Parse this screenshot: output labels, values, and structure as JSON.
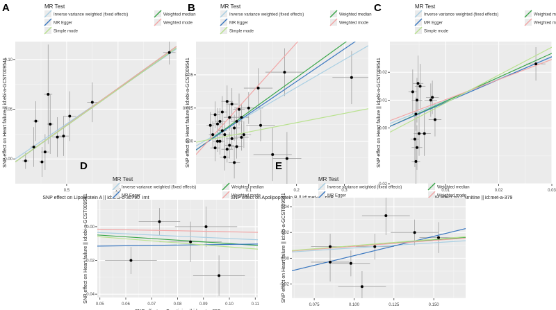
{
  "legend_title": "MR Test",
  "methods": [
    {
      "key": "ivw",
      "label": "Inverse variance weighted (fixed effects)",
      "color": "#a9cfe3"
    },
    {
      "key": "egger",
      "label": "MR Egger",
      "color": "#3b78c0"
    },
    {
      "key": "median",
      "label": "Weighted median",
      "color": "#3aa64a"
    },
    {
      "key": "mode",
      "label": "Weighted mode",
      "color": "#f2a5a5"
    },
    {
      "key": "simple",
      "label": "Simple mode",
      "color": "#b9e28f"
    }
  ],
  "chart_data": [
    {
      "type": "scatter",
      "panel": "A",
      "xlabel": "SNP effect on Lipoprotein A || id:ukb-d-30790_irnt",
      "ylabel": "SNP effect on Heart failure || id:ebi-a-GCST009541",
      "xlim": [
        0.0,
        1.57
      ],
      "ylim": [
        -0.025,
        0.118
      ],
      "xticks": [
        {
          "v": 0.5,
          "l": "0.5"
        },
        {
          "v": 1.0,
          "l": "1.0"
        }
      ],
      "yticks": [
        {
          "v": 0.0,
          "l": "0.00"
        },
        {
          "v": 0.05,
          "l": "0.05"
        },
        {
          "v": 0.1,
          "l": "0.10"
        }
      ],
      "points": [
        {
          "x": 0.1,
          "y": -0.002,
          "xe": 0.03,
          "ye": 0.008
        },
        {
          "x": 0.18,
          "y": 0.012,
          "xe": 0.03,
          "ye": 0.02
        },
        {
          "x": 0.2,
          "y": 0.038,
          "xe": 0.03,
          "ye": 0.02
        },
        {
          "x": 0.26,
          "y": -0.003,
          "xe": 0.03,
          "ye": 0.015
        },
        {
          "x": 0.29,
          "y": 0.007,
          "xe": 0.04,
          "ye": 0.018
        },
        {
          "x": 0.32,
          "y": 0.065,
          "xe": 0.04,
          "ye": 0.05
        },
        {
          "x": 0.34,
          "y": 0.035,
          "xe": 0.03,
          "ye": 0.03
        },
        {
          "x": 0.41,
          "y": 0.022,
          "xe": 0.05,
          "ye": 0.02
        },
        {
          "x": 0.47,
          "y": 0.023,
          "xe": 0.05,
          "ye": 0.02
        },
        {
          "x": 0.53,
          "y": 0.043,
          "xe": 0.06,
          "ye": 0.025
        },
        {
          "x": 0.75,
          "y": 0.057,
          "xe": 0.05,
          "ye": 0.02
        },
        {
          "x": 1.5,
          "y": 0.107,
          "xe": 0.06,
          "ye": 0.012
        }
      ],
      "lines": {
        "ivw": {
          "slope": 0.0705,
          "intercept": 0.0
        },
        "egger": {
          "slope": 0.073,
          "intercept": -0.003
        },
        "median": {
          "slope": 0.074,
          "intercept": -0.003
        },
        "mode": {
          "slope": 0.074,
          "intercept": -0.003
        },
        "simple": {
          "slope": 0.073,
          "intercept": -0.003
        }
      }
    },
    {
      "type": "scatter",
      "panel": "B",
      "xlabel": "SNP effect on Apolipoprotein B || id:met-d-ApoB",
      "ylabel": "SNP effect on Heart failure || id:ebi-a-GCST009541",
      "xlim": [
        -0.01,
        0.35
      ],
      "ylim": [
        -0.032,
        0.075
      ],
      "xticks": [
        {
          "v": 0.1,
          "l": "0.1"
        },
        {
          "v": 0.2,
          "l": "0.2"
        },
        {
          "v": 0.3,
          "l": "0.3"
        }
      ],
      "yticks": [
        {
          "v": 0.0,
          "l": "0.00"
        },
        {
          "v": 0.025,
          "l": "0.025"
        },
        {
          "v": 0.05,
          "l": "0.05"
        }
      ],
      "points": [
        {
          "x": 0.02,
          "y": 0.012,
          "xe": 0.008,
          "ye": 0.01
        },
        {
          "x": 0.025,
          "y": 0.005,
          "xe": 0.008,
          "ye": 0.01
        },
        {
          "x": 0.03,
          "y": -0.005,
          "xe": 0.01,
          "ye": 0.01
        },
        {
          "x": 0.03,
          "y": 0.02,
          "xe": 0.01,
          "ye": 0.01
        },
        {
          "x": 0.035,
          "y": 0.013,
          "xe": 0.01,
          "ye": 0.012
        },
        {
          "x": 0.04,
          "y": 0.0,
          "xe": 0.01,
          "ye": 0.01
        },
        {
          "x": 0.04,
          "y": 0.015,
          "xe": 0.01,
          "ye": 0.01
        },
        {
          "x": 0.045,
          "y": 0.022,
          "xe": 0.01,
          "ye": 0.012
        },
        {
          "x": 0.05,
          "y": 0.005,
          "xe": 0.012,
          "ye": 0.01
        },
        {
          "x": 0.05,
          "y": -0.012,
          "xe": 0.01,
          "ye": 0.01
        },
        {
          "x": 0.055,
          "y": 0.03,
          "xe": 0.012,
          "ye": 0.012
        },
        {
          "x": 0.06,
          "y": 0.018,
          "xe": 0.012,
          "ye": 0.01
        },
        {
          "x": 0.06,
          "y": -0.003,
          "xe": 0.01,
          "ye": 0.01
        },
        {
          "x": 0.065,
          "y": 0.028,
          "xe": 0.012,
          "ye": 0.012
        },
        {
          "x": 0.07,
          "y": 0.01,
          "xe": 0.012,
          "ye": 0.01
        },
        {
          "x": 0.07,
          "y": -0.016,
          "xe": 0.012,
          "ye": 0.012
        },
        {
          "x": 0.075,
          "y": 0.015,
          "xe": 0.012,
          "ye": 0.01
        },
        {
          "x": 0.08,
          "y": 0.024,
          "xe": 0.012,
          "ye": 0.012
        },
        {
          "x": 0.085,
          "y": 0.018,
          "xe": 0.015,
          "ye": 0.01
        },
        {
          "x": 0.035,
          "y": 0.0,
          "xe": 0.01,
          "ye": 0.008
        },
        {
          "x": 0.045,
          "y": 0.008,
          "xe": 0.01,
          "ye": 0.009
        },
        {
          "x": 0.055,
          "y": -0.006,
          "xe": 0.012,
          "ye": 0.01
        },
        {
          "x": 0.065,
          "y": 0.002,
          "xe": 0.012,
          "ye": 0.008
        },
        {
          "x": 0.075,
          "y": -0.004,
          "xe": 0.012,
          "ye": 0.009
        },
        {
          "x": 0.085,
          "y": 0.003,
          "xe": 0.015,
          "ye": 0.01
        },
        {
          "x": 0.09,
          "y": 0.005,
          "xe": 0.015,
          "ye": 0.01
        },
        {
          "x": 0.1,
          "y": 0.025,
          "xe": 0.03,
          "ye": 0.012
        },
        {
          "x": 0.12,
          "y": 0.04,
          "xe": 0.03,
          "ye": 0.015
        },
        {
          "x": 0.125,
          "y": 0.012,
          "xe": 0.03,
          "ye": 0.012
        },
        {
          "x": 0.15,
          "y": -0.01,
          "xe": 0.04,
          "ye": 0.02
        },
        {
          "x": 0.175,
          "y": 0.052,
          "xe": 0.04,
          "ye": 0.018
        },
        {
          "x": 0.18,
          "y": -0.013,
          "xe": 0.03,
          "ye": 0.02
        },
        {
          "x": 0.315,
          "y": 0.048,
          "xe": 0.04,
          "ye": 0.02
        }
      ],
      "lines": {
        "ivw": {
          "slope": 0.21,
          "intercept": -0.0015
        },
        "egger": {
          "slope": 0.245,
          "intercept": -0.004
        },
        "median": {
          "slope": 0.26,
          "intercept": -0.004
        },
        "mode": {
          "slope": 0.4,
          "intercept": -0.006
        },
        "simple": {
          "slope": 0.07,
          "intercept": 0.0
        }
      }
    },
    {
      "type": "scatter",
      "panel": "C",
      "xlabel": "SNP effect on Carnitine || id:met-a-379",
      "ylabel": "SNP effect on Heart failure || id:ebi-a-GCST009541",
      "xlim": [
        -0.0005,
        0.03
      ],
      "ylim": [
        -0.02,
        0.031
      ],
      "xticks": [
        {
          "v": 0.01,
          "l": "0.01"
        },
        {
          "v": 0.02,
          "l": "0.02"
        },
        {
          "v": 0.03,
          "l": "0.03"
        }
      ],
      "yticks": [
        {
          "v": -0.02,
          "l": "-0.02"
        },
        {
          "v": 0.0,
          "l": "0.00"
        },
        {
          "v": 0.01,
          "l": "0.01"
        },
        {
          "v": 0.02,
          "l": "0.02"
        }
      ],
      "points": [
        {
          "x": 0.0038,
          "y": 0.013,
          "xe": 0.0008,
          "ye": 0.008
        },
        {
          "x": 0.0042,
          "y": -0.004,
          "xe": 0.0008,
          "ye": 0.01
        },
        {
          "x": 0.0044,
          "y": 0.005,
          "xe": 0.0008,
          "ye": 0.006
        },
        {
          "x": 0.0044,
          "y": -0.012,
          "xe": 0.0008,
          "ye": 0.008
        },
        {
          "x": 0.0046,
          "y": -0.007,
          "xe": 0.001,
          "ye": 0.008
        },
        {
          "x": 0.0046,
          "y": 0.01,
          "xe": 0.001,
          "ye": 0.008
        },
        {
          "x": 0.0048,
          "y": 0.016,
          "xe": 0.001,
          "ye": 0.01
        },
        {
          "x": 0.005,
          "y": -0.002,
          "xe": 0.001,
          "ye": 0.008
        },
        {
          "x": 0.0052,
          "y": 0.015,
          "xe": 0.001,
          "ye": 0.008
        },
        {
          "x": 0.006,
          "y": -0.002,
          "xe": 0.0012,
          "ye": 0.008
        },
        {
          "x": 0.0072,
          "y": 0.01,
          "xe": 0.0012,
          "ye": 0.006
        },
        {
          "x": 0.0075,
          "y": 0.011,
          "xe": 0.0012,
          "ye": 0.006
        },
        {
          "x": 0.008,
          "y": 0.003,
          "xe": 0.0012,
          "ye": 0.006
        },
        {
          "x": 0.027,
          "y": 0.023,
          "xe": 0.0018,
          "ye": 0.006
        }
      ],
      "lines": {
        "ivw": {
          "slope": 0.78,
          "intercept": 0.002
        },
        "egger": {
          "slope": 0.82,
          "intercept": 0.001
        },
        "median": {
          "slope": 0.86,
          "intercept": 0.001
        },
        "mode": {
          "slope": 0.72,
          "intercept": 0.003
        },
        "simple": {
          "slope": 1.0,
          "intercept": -0.001
        }
      }
    },
    {
      "type": "scatter",
      "panel": "D",
      "xlabel": "SNP effect on Creatinine || id:met-c-850",
      "ylabel": "SNP effect on Heart failure || id:ebi-a-GCST009541",
      "xlim": [
        0.049,
        0.111
      ],
      "ylim": [
        -0.042,
        0.016
      ],
      "xticks": [
        {
          "v": 0.05,
          "l": "0.05"
        },
        {
          "v": 0.06,
          "l": "0.06"
        },
        {
          "v": 0.07,
          "l": "0.07"
        },
        {
          "v": 0.08,
          "l": "0.08"
        },
        {
          "v": 0.09,
          "l": "0.09"
        },
        {
          "v": 0.1,
          "l": "0.10"
        },
        {
          "v": 0.11,
          "l": "0.11"
        }
      ],
      "yticks": [
        {
          "v": -0.04,
          "l": "-0.04"
        },
        {
          "v": -0.02,
          "l": "-0.02"
        },
        {
          "v": 0.0,
          "l": "0.00"
        }
      ],
      "points": [
        {
          "x": 0.062,
          "y": -0.02,
          "xe": 0.01,
          "ye": 0.008
        },
        {
          "x": 0.073,
          "y": 0.003,
          "xe": 0.008,
          "ye": 0.008
        },
        {
          "x": 0.085,
          "y": -0.009,
          "xe": 0.012,
          "ye": 0.012
        },
        {
          "x": 0.091,
          "y": 0.0,
          "xe": 0.012,
          "ye": 0.012
        },
        {
          "x": 0.096,
          "y": -0.029,
          "xe": 0.01,
          "ye": 0.012
        }
      ],
      "lines": {
        "ivw": {
          "slope": -0.07,
          "intercept": 0.0
        },
        "egger": {
          "slope": 0.02,
          "intercept": -0.0125
        },
        "median": {
          "slope": -0.1,
          "intercept": 0.0
        },
        "mode": {
          "slope": -0.03,
          "intercept": 0.0
        },
        "simple": {
          "slope": -0.12,
          "intercept": 0.0
        }
      }
    },
    {
      "type": "scatter",
      "panel": "E",
      "xlabel": "SNP effect on Total fatty acids || id:met-c-936",
      "ylabel": "SNP effect on Heart failure || id:ebi-a-GCST009541",
      "xlim": [
        0.061,
        0.17
      ],
      "ylim": [
        -0.031,
        0.047
      ],
      "xticks": [
        {
          "v": 0.075,
          "l": "0.075"
        },
        {
          "v": 0.1,
          "l": "0.100"
        },
        {
          "v": 0.125,
          "l": "0.125"
        },
        {
          "v": 0.15,
          "l": "0.150"
        }
      ],
      "yticks": [
        {
          "v": -0.02,
          "l": "-0.02"
        },
        {
          "v": 0.0,
          "l": "0.00"
        },
        {
          "v": 0.02,
          "l": "0.02"
        },
        {
          "v": 0.04,
          "l": "0.04"
        }
      ],
      "points": [
        {
          "x": 0.085,
          "y": 0.009,
          "xe": 0.012,
          "ye": 0.01
        },
        {
          "x": 0.085,
          "y": -0.003,
          "xe": 0.012,
          "ye": 0.015
        },
        {
          "x": 0.098,
          "y": -0.004,
          "xe": 0.012,
          "ye": 0.01
        },
        {
          "x": 0.105,
          "y": -0.022,
          "xe": 0.015,
          "ye": 0.012
        },
        {
          "x": 0.113,
          "y": 0.009,
          "xe": 0.012,
          "ye": 0.01
        },
        {
          "x": 0.12,
          "y": 0.033,
          "xe": 0.015,
          "ye": 0.015
        },
        {
          "x": 0.138,
          "y": 0.02,
          "xe": 0.015,
          "ye": 0.01
        },
        {
          "x": 0.153,
          "y": 0.016,
          "xe": 0.012,
          "ye": 0.012
        }
      ],
      "lines": {
        "ivw": {
          "slope": 0.08,
          "intercept": 0.0
        },
        "egger": {
          "slope": 0.3,
          "intercept": -0.028
        },
        "median": {
          "slope": 0.095,
          "intercept": 0.0
        },
        "mode": {
          "slope": 0.092,
          "intercept": 0.0
        },
        "simple": {
          "slope": 0.098,
          "intercept": 0.0
        }
      }
    }
  ]
}
